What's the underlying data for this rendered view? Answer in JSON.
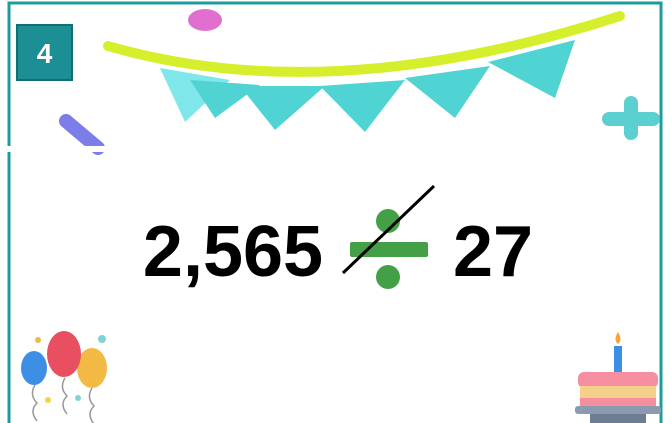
{
  "badge": "4",
  "dividend": "2,565",
  "divisor": "27"
}
